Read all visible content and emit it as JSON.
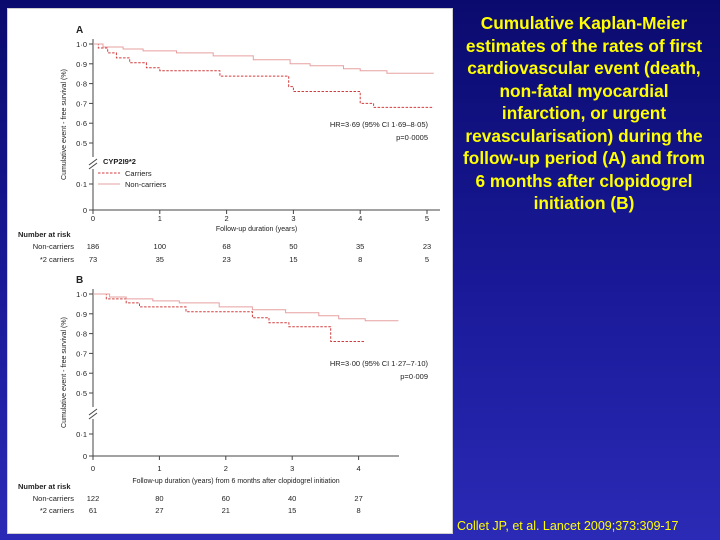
{
  "slide": {
    "title": "Cumulative Kaplan-Meier estimates of the rates of first cardiovascular event (death, non-fatal myocardial infarction, or urgent revascularisation) during the follow-up period (A) and from 6 months after clopidogrel initiation (B)",
    "citation": "Collet JP, et al. Lancet 2009;373:309-17"
  },
  "colors": {
    "carriers": "#d23c3c",
    "non_carriers": "#e6a0a0",
    "axis": "#444444",
    "text": "#222222"
  },
  "chart_data": [
    {
      "type": "line",
      "panel_label": "A",
      "xlabel": "Follow-up duration (years)",
      "ylabel": "Cumulative event - free survival (%)",
      "x_ticks": [
        "0",
        "1",
        "2",
        "3",
        "4",
        "5"
      ],
      "y_ticks": [
        "0",
        "0·1",
        "0·5",
        "0·6",
        "0·7",
        "0·8",
        "0·9",
        "1·0"
      ],
      "xlim": [
        0,
        5.2
      ],
      "ylim": [
        0,
        1.0
      ],
      "axis_break": "between 0·1 and 0·5",
      "grid": false,
      "legend_position": "bottom-left",
      "legend_title": "CYP2I9*2",
      "series": [
        {
          "name": "Carriers",
          "style": "dashed",
          "points": [
            [
              0,
              1.0
            ],
            [
              0.08,
              0.98
            ],
            [
              0.22,
              0.955
            ],
            [
              0.35,
              0.93
            ],
            [
              0.55,
              0.905
            ],
            [
              0.8,
              0.88
            ],
            [
              1.0,
              0.865
            ],
            [
              1.4,
              0.865
            ],
            [
              1.9,
              0.838
            ],
            [
              2.8,
              0.838
            ],
            [
              2.93,
              0.785
            ],
            [
              3.0,
              0.76
            ],
            [
              3.95,
              0.76
            ],
            [
              4.0,
              0.7
            ],
            [
              4.2,
              0.68
            ],
            [
              5.1,
              0.68
            ]
          ]
        },
        {
          "name": "Non-carriers",
          "style": "solid",
          "points": [
            [
              0,
              1.0
            ],
            [
              0.15,
              0.985
            ],
            [
              0.45,
              0.975
            ],
            [
              0.75,
              0.965
            ],
            [
              1.25,
              0.955
            ],
            [
              1.8,
              0.94
            ],
            [
              2.4,
              0.92
            ],
            [
              2.95,
              0.9
            ],
            [
              3.25,
              0.89
            ],
            [
              3.75,
              0.875
            ],
            [
              4.0,
              0.865
            ],
            [
              4.4,
              0.852
            ],
            [
              5.1,
              0.852
            ]
          ]
        }
      ],
      "annotations": [
        "HR=3·69 (95% CI 1·69–8·05)",
        "p=0·0005"
      ],
      "number_at_risk": {
        "heading": "Number at risk",
        "rows": [
          {
            "label": "Non-carriers",
            "values": [
              "186",
              "100",
              "68",
              "50",
              "35",
              "23"
            ]
          },
          {
            "label": "*2 carriers",
            "values": [
              "73",
              "35",
              "23",
              "15",
              "8",
              "5"
            ]
          }
        ]
      }
    },
    {
      "type": "line",
      "panel_label": "B",
      "xlabel": "Follow-up duration (years) from 6 months after clopidogrel initiation",
      "ylabel": "Cumulative event - free survival (%)",
      "x_ticks": [
        "0",
        "1",
        "2",
        "3",
        "4"
      ],
      "y_ticks": [
        "0",
        "0·1",
        "0·5",
        "0·6",
        "0·7",
        "0·8",
        "0·9",
        "1·0"
      ],
      "xlim": [
        0,
        4.6
      ],
      "ylim": [
        0,
        1.0
      ],
      "axis_break": "between 0·1 and 0·5",
      "grid": false,
      "series": [
        {
          "name": "Carriers",
          "style": "dashed",
          "points": [
            [
              0,
              1.0
            ],
            [
              0.2,
              0.975
            ],
            [
              0.5,
              0.955
            ],
            [
              0.7,
              0.935
            ],
            [
              1.2,
              0.935
            ],
            [
              1.4,
              0.91
            ],
            [
              2.1,
              0.91
            ],
            [
              2.4,
              0.88
            ],
            [
              2.65,
              0.855
            ],
            [
              2.95,
              0.835
            ],
            [
              3.5,
              0.835
            ],
            [
              3.58,
              0.76
            ],
            [
              4.1,
              0.76
            ]
          ]
        },
        {
          "name": "Non-carriers",
          "style": "solid",
          "points": [
            [
              0,
              1.0
            ],
            [
              0.25,
              0.985
            ],
            [
              0.5,
              0.975
            ],
            [
              0.9,
              0.965
            ],
            [
              1.3,
              0.955
            ],
            [
              1.9,
              0.935
            ],
            [
              2.4,
              0.92
            ],
            [
              2.9,
              0.905
            ],
            [
              3.4,
              0.89
            ],
            [
              3.7,
              0.875
            ],
            [
              4.1,
              0.865
            ],
            [
              4.6,
              0.865
            ]
          ]
        }
      ],
      "annotations": [
        "HR=3·00 (95% CI 1·27–7·10)",
        "p=0·009"
      ],
      "number_at_risk": {
        "heading": "Number at risk",
        "rows": [
          {
            "label": "Non-carriers",
            "values": [
              "122",
              "80",
              "60",
              "40",
              "27"
            ]
          },
          {
            "label": "*2 carriers",
            "values": [
              "61",
              "27",
              "21",
              "15",
              "8"
            ]
          }
        ]
      }
    }
  ]
}
